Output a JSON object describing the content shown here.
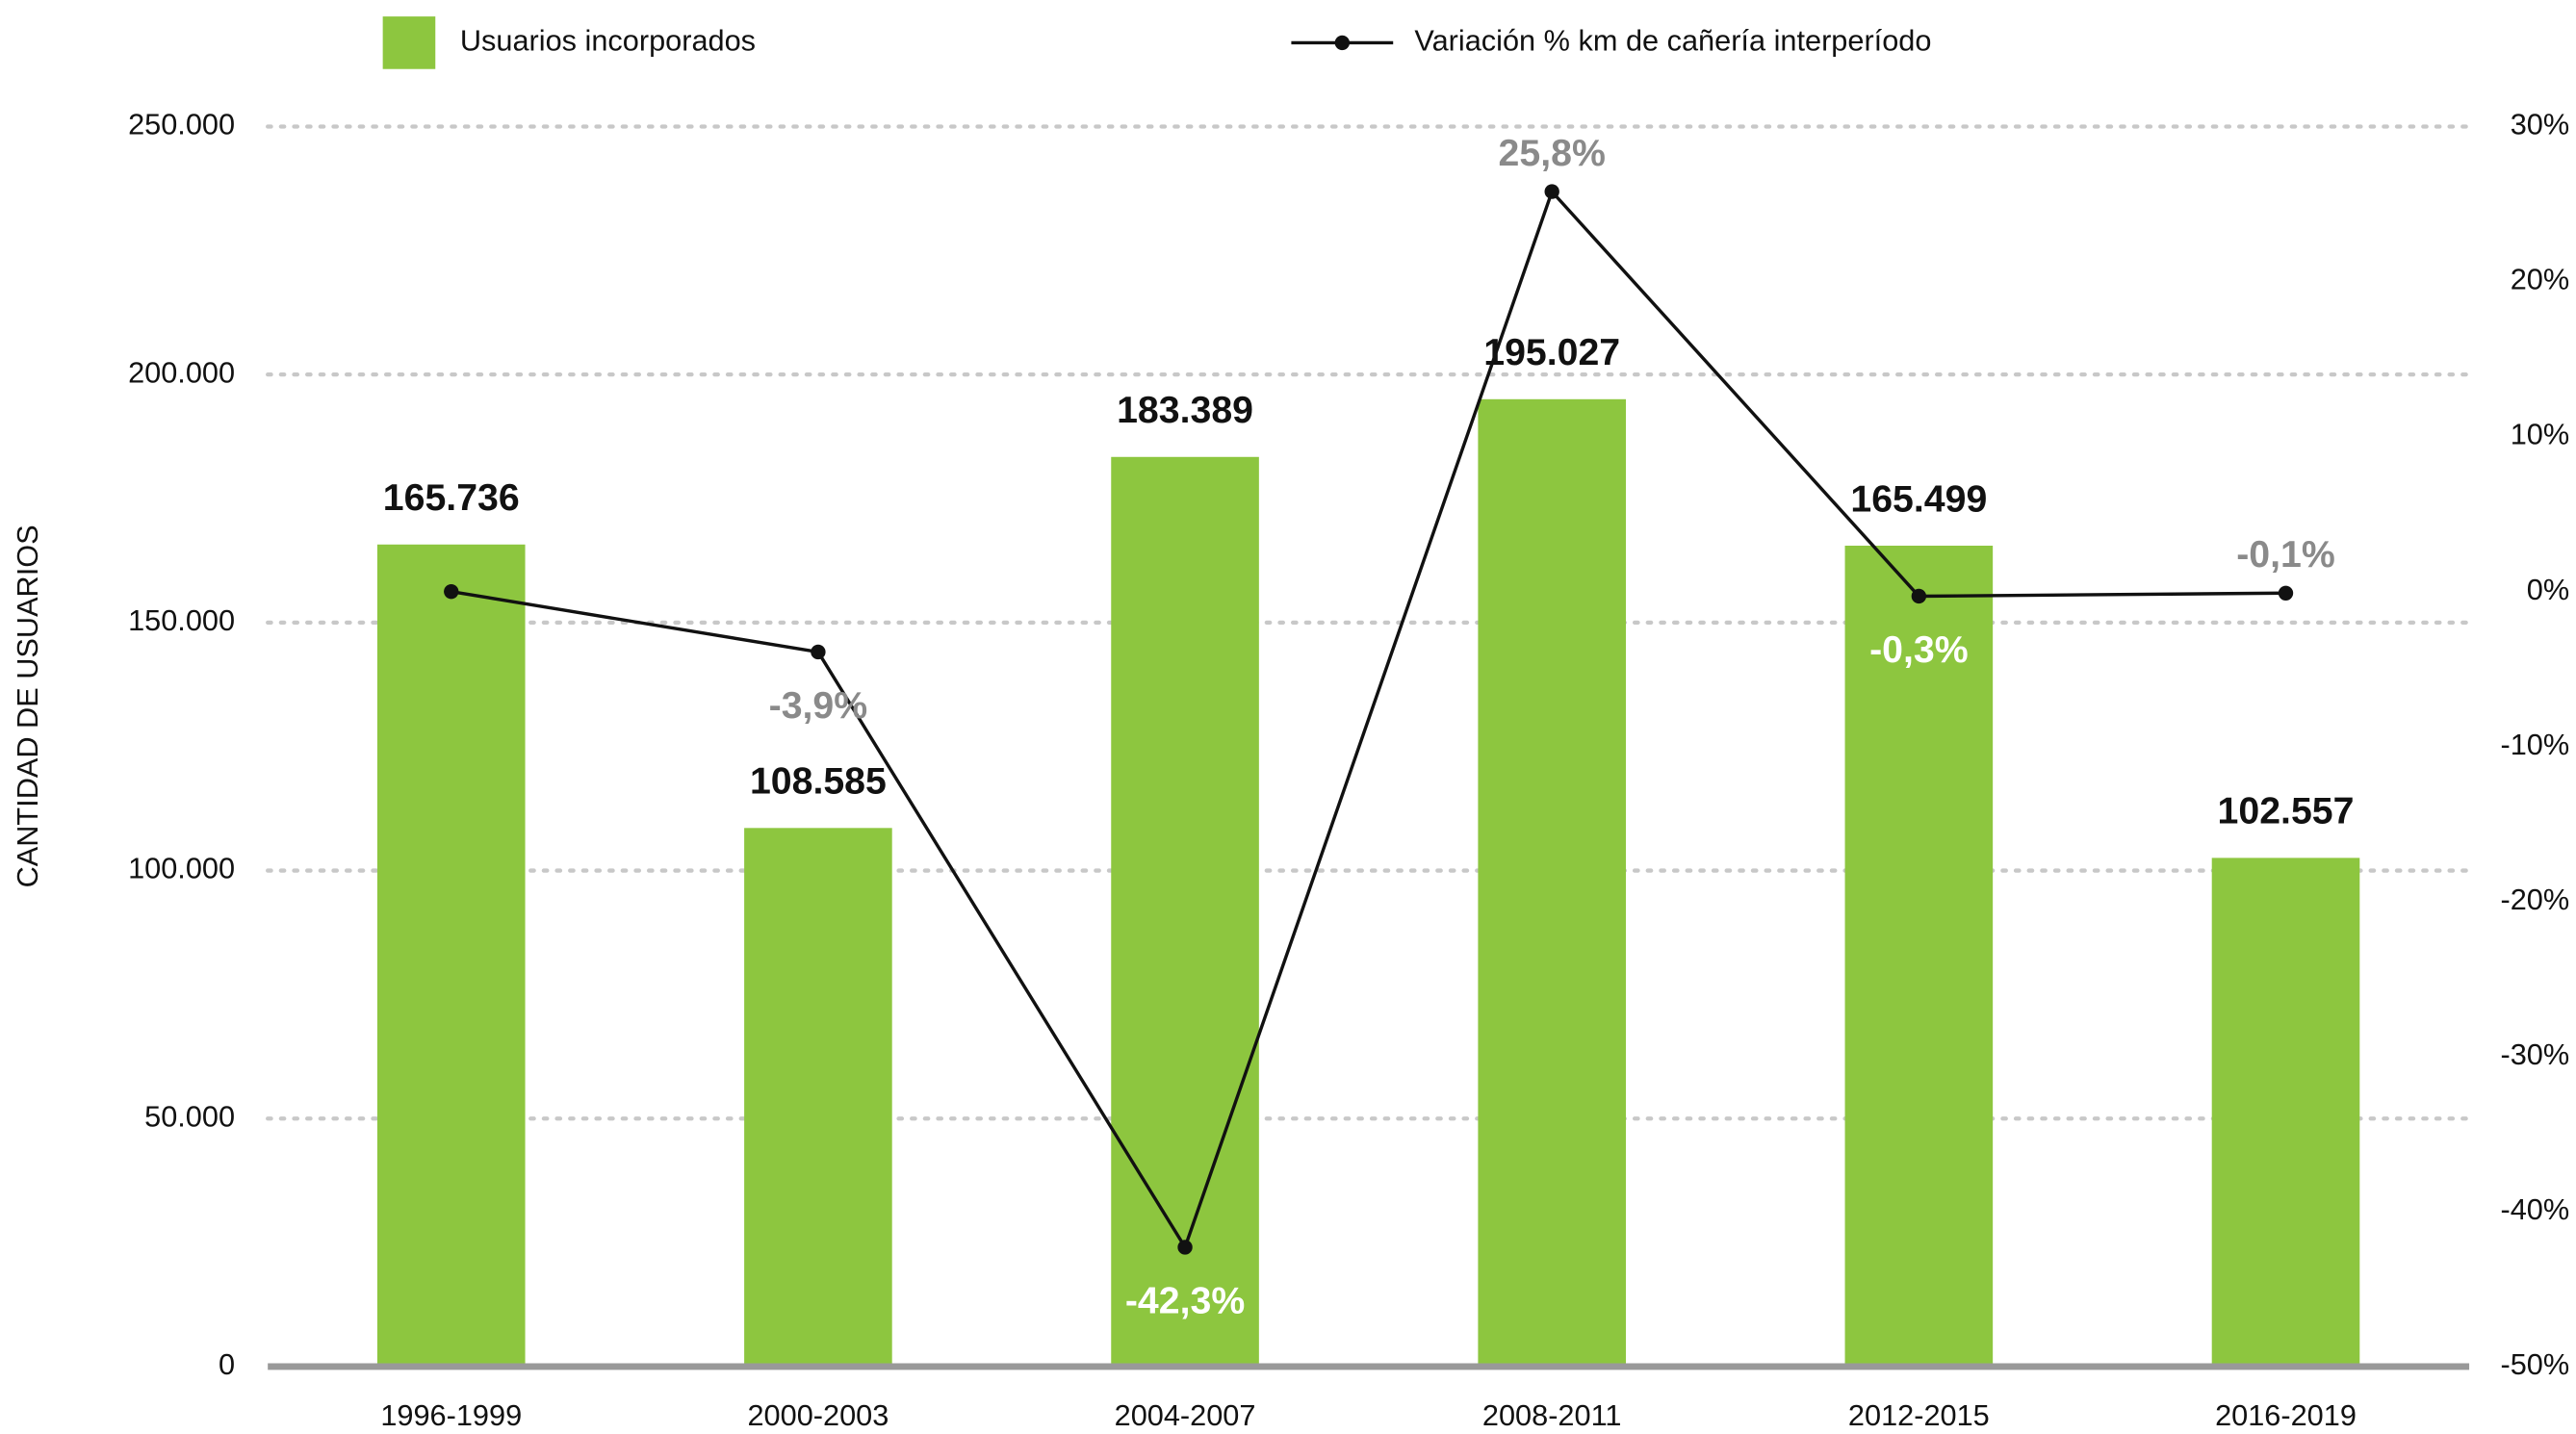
{
  "chart_data": {
    "type": "bar_line",
    "y_axis_label": "CANTIDAD DE USUARIOS",
    "categories": [
      "1996-1999",
      "2000-2003",
      "2004-2007",
      "2008-2011",
      "2012-2015",
      "2016-2019"
    ],
    "series": [
      {
        "name": "Usuarios incorporados",
        "type": "bar",
        "color": "#8dc63f",
        "values": [
          165736,
          108585,
          183389,
          195027,
          165499,
          102557
        ],
        "value_labels": [
          "165.736",
          "108.585",
          "183.389",
          "195.027",
          "165.499",
          "102.557"
        ]
      },
      {
        "name": "Variación % km de cañería interperíodo",
        "type": "line",
        "color": "#111111",
        "axis": "y2",
        "values": [
          0,
          -3.9,
          -42.3,
          25.8,
          -0.3,
          -0.1
        ],
        "value_labels": [
          null,
          "-3,9%",
          "-42,3%",
          "25,8%",
          "-0,3%",
          "-0,1%"
        ]
      }
    ],
    "ylim": [
      0,
      250000
    ],
    "yticks": [
      0,
      {
        "value": 50000,
        "label": "50.000"
      },
      {
        "value": 100000,
        "label": "100.000"
      },
      {
        "value": 150000,
        "label": "150.000"
      },
      {
        "value": 200000,
        "label": "200.000"
      },
      {
        "value": 250000,
        "label": "250.000"
      }
    ],
    "y2lim": [
      -50,
      30
    ],
    "y2ticks": [
      {
        "value": -50,
        "label": "-50%"
      },
      {
        "value": -40,
        "label": "-40%"
      },
      {
        "value": -30,
        "label": "-30%"
      },
      {
        "value": -20,
        "label": "-20%"
      },
      {
        "value": -10,
        "label": "-10%"
      },
      {
        "value": 0,
        "label": "0%"
      },
      {
        "value": 10,
        "label": "10%"
      },
      {
        "value": 20,
        "label": "20%"
      },
      {
        "value": 30,
        "label": "30%"
      }
    ],
    "grid": true,
    "legend": "top"
  }
}
